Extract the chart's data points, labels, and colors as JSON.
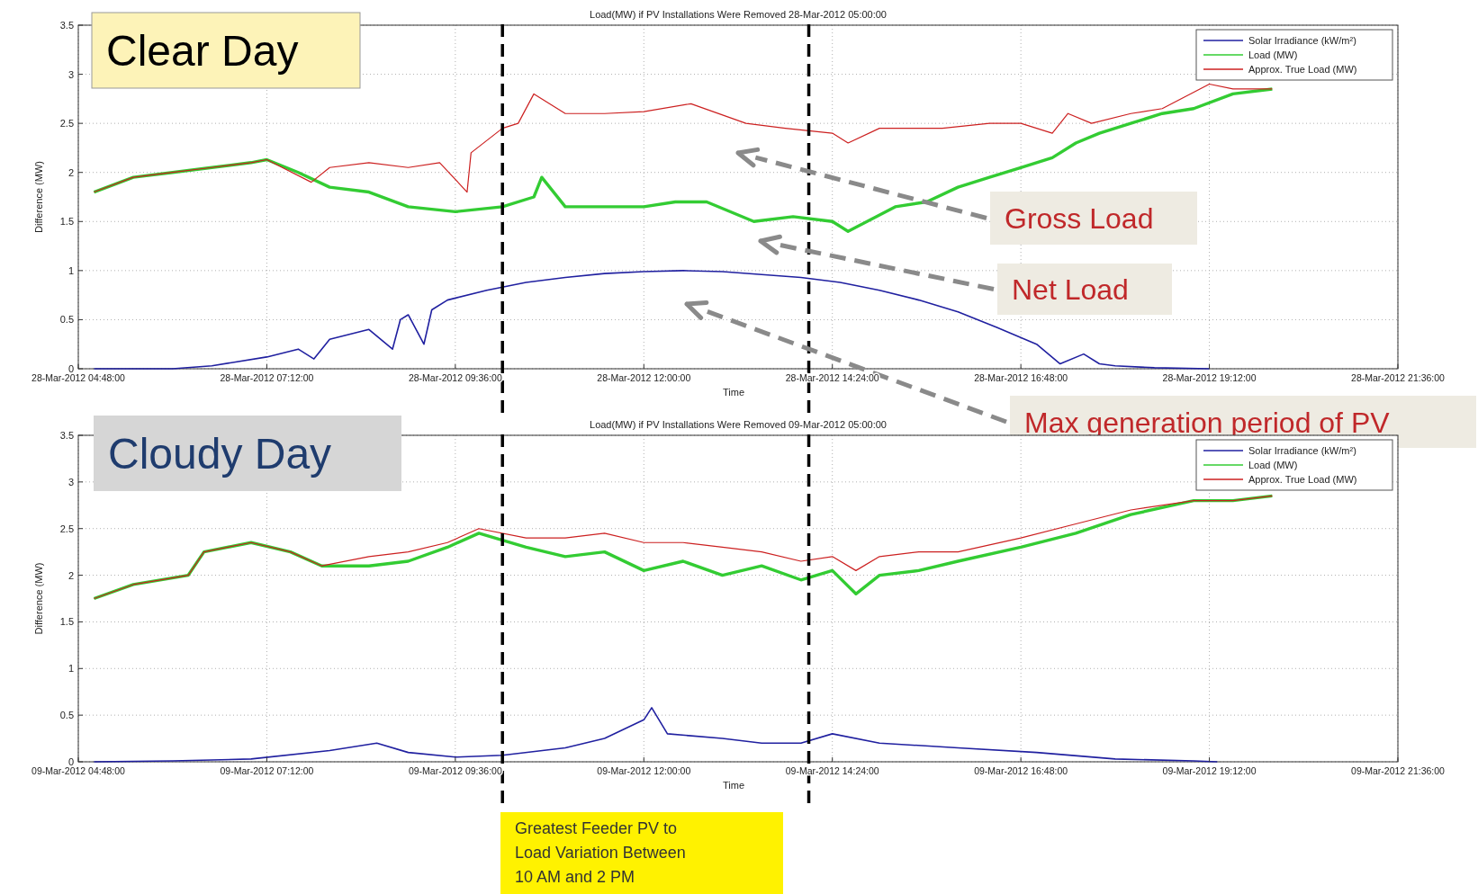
{
  "chart_data": [
    {
      "type": "line",
      "title": "Load(MW) if PV Installations Were Removed 28-Mar-2012 05:00:00",
      "xlabel": "Time",
      "ylabel": "Difference (MW)",
      "annotations": [
        "Clear Day",
        "Gross Load",
        "Net Load",
        "Max generation period of PV"
      ],
      "xlim": [
        "2012-03-28T04:48",
        "2012-03-28T21:36"
      ],
      "xticks": [
        {
          "value": "2012-03-28T04:48",
          "label": "28-Mar-2012 04:48:00"
        },
        {
          "value": "2012-03-28T07:12",
          "label": "28-Mar-2012 07:12:00"
        },
        {
          "value": "2012-03-28T09:36",
          "label": "28-Mar-2012 09:36:00"
        },
        {
          "value": "2012-03-28T12:00",
          "label": "28-Mar-2012 12:00:00"
        },
        {
          "value": "2012-03-28T14:24",
          "label": "28-Mar-2012 14:24:00"
        },
        {
          "value": "2012-03-28T16:48",
          "label": "28-Mar-2012 16:48:00"
        },
        {
          "value": "2012-03-28T19:12",
          "label": "28-Mar-2012 19:12:00"
        },
        {
          "value": "2012-03-28T21:36",
          "label": "28-Mar-2012 21:36:00"
        }
      ],
      "ylim": [
        0,
        3.5
      ],
      "yticks": [
        0,
        0.5,
        1,
        1.5,
        2,
        2.5,
        3,
        3.5
      ],
      "grid": true,
      "legend": "top right",
      "line_style": "solid",
      "ref_lines": [
        {
          "axis": "x",
          "value": "2012-03-28T10:12",
          "color": "#000000",
          "line_style": "dashed"
        },
        {
          "axis": "x",
          "value": "2012-03-28T14:06",
          "color": "#000000",
          "line_style": "dashed"
        }
      ],
      "series": [
        {
          "name": "Solar Irradiance (kW/m²)",
          "color": "#2020a0",
          "x": [
            "2012-03-28T05:00",
            "2012-03-28T06:00",
            "2012-03-28T06:30",
            "2012-03-28T07:12",
            "2012-03-28T07:36",
            "2012-03-28T07:48",
            "2012-03-28T08:00",
            "2012-03-28T08:30",
            "2012-03-28T08:48",
            "2012-03-28T08:54",
            "2012-03-28T09:00",
            "2012-03-28T09:12",
            "2012-03-28T09:18",
            "2012-03-28T09:30",
            "2012-03-28T10:00",
            "2012-03-28T10:30",
            "2012-03-28T11:00",
            "2012-03-28T11:30",
            "2012-03-28T12:00",
            "2012-03-28T12:30",
            "2012-03-28T13:00",
            "2012-03-28T13:30",
            "2012-03-28T14:00",
            "2012-03-28T14:30",
            "2012-03-28T15:00",
            "2012-03-28T15:30",
            "2012-03-28T16:00",
            "2012-03-28T16:30",
            "2012-03-28T17:00",
            "2012-03-28T17:18",
            "2012-03-28T17:36",
            "2012-03-28T17:48",
            "2012-03-28T18:00",
            "2012-03-28T18:30",
            "2012-03-28T19:12"
          ],
          "values": [
            0,
            0,
            0.03,
            0.12,
            0.2,
            0.1,
            0.3,
            0.4,
            0.2,
            0.5,
            0.55,
            0.25,
            0.6,
            0.7,
            0.8,
            0.88,
            0.93,
            0.97,
            0.99,
            1,
            0.99,
            0.96,
            0.93,
            0.88,
            0.8,
            0.7,
            0.58,
            0.42,
            0.25,
            0.05,
            0.15,
            0.05,
            0.03,
            0.01,
            0
          ]
        },
        {
          "name": "Load (MW)",
          "color": "#33cc33",
          "x": [
            "2012-03-28T05:00",
            "2012-03-28T05:30",
            "2012-03-28T06:00",
            "2012-03-28T06:30",
            "2012-03-28T07:00",
            "2012-03-28T07:12",
            "2012-03-28T07:36",
            "2012-03-28T08:00",
            "2012-03-28T08:30",
            "2012-03-28T09:00",
            "2012-03-28T09:36",
            "2012-03-28T10:12",
            "2012-03-28T10:36",
            "2012-03-28T10:42",
            "2012-03-28T11:00",
            "2012-03-28T11:30",
            "2012-03-28T12:00",
            "2012-03-28T12:24",
            "2012-03-28T12:48",
            "2012-03-28T13:24",
            "2012-03-28T13:54",
            "2012-03-28T14:24",
            "2012-03-28T14:36",
            "2012-03-28T15:12",
            "2012-03-28T15:36",
            "2012-03-28T16:00",
            "2012-03-28T16:24",
            "2012-03-28T16:48",
            "2012-03-28T17:12",
            "2012-03-28T17:30",
            "2012-03-28T17:48",
            "2012-03-28T18:12",
            "2012-03-28T18:36",
            "2012-03-28T19:00",
            "2012-03-28T19:30",
            "2012-03-28T20:00"
          ],
          "values": [
            1.8,
            1.95,
            2,
            2.05,
            2.1,
            2.13,
            2.0,
            1.85,
            1.8,
            1.65,
            1.6,
            1.65,
            1.75,
            1.95,
            1.65,
            1.65,
            1.65,
            1.7,
            1.7,
            1.5,
            1.55,
            1.5,
            1.4,
            1.65,
            1.7,
            1.85,
            1.95,
            2.05,
            2.15,
            2.3,
            2.4,
            2.5,
            2.6,
            2.65,
            2.8,
            2.85
          ]
        },
        {
          "name": "Approx. True Load (MW)",
          "color": "#cc2020",
          "x": [
            "2012-03-28T05:00",
            "2012-03-28T05:30",
            "2012-03-28T06:00",
            "2012-03-28T06:30",
            "2012-03-28T07:00",
            "2012-03-28T07:12",
            "2012-03-28T07:46",
            "2012-03-28T08:00",
            "2012-03-28T08:30",
            "2012-03-28T09:00",
            "2012-03-28T09:24",
            "2012-03-28T09:45",
            "2012-03-28T09:48",
            "2012-03-28T10:12",
            "2012-03-28T10:24",
            "2012-03-28T10:36",
            "2012-03-28T11:00",
            "2012-03-28T11:30",
            "2012-03-28T12:00",
            "2012-03-28T12:36",
            "2012-03-28T13:18",
            "2012-03-28T13:48",
            "2012-03-28T14:24",
            "2012-03-28T14:36",
            "2012-03-28T15:00",
            "2012-03-28T15:48",
            "2012-03-28T16:24",
            "2012-03-28T16:48",
            "2012-03-28T17:12",
            "2012-03-28T17:24",
            "2012-03-28T17:42",
            "2012-03-28T18:12",
            "2012-03-28T18:36",
            "2012-03-28T19:12",
            "2012-03-28T19:30",
            "2012-03-28T20:00"
          ],
          "values": [
            1.8,
            1.95,
            2,
            2.05,
            2.1,
            2.13,
            1.9,
            2.05,
            2.1,
            2.05,
            2.1,
            1.8,
            2.2,
            2.45,
            2.5,
            2.8,
            2.6,
            2.6,
            2.62,
            2.7,
            2.5,
            2.45,
            2.4,
            2.3,
            2.45,
            2.45,
            2.5,
            2.5,
            2.4,
            2.6,
            2.5,
            2.6,
            2.65,
            2.9,
            2.85,
            2.85
          ]
        }
      ]
    },
    {
      "type": "line",
      "title": "Load(MW) if PV Installations Were Removed 09-Mar-2012 05:00:00",
      "xlabel": "Time",
      "ylabel": "Difference (MW)",
      "annotations": [
        "Cloudy Day",
        "Greatest Feeder PV to Load Variation Between 10 AM and 2 PM"
      ],
      "xlim": [
        "2012-03-09T04:48",
        "2012-03-09T21:36"
      ],
      "xticks": [
        {
          "value": "2012-03-09T04:48",
          "label": "09-Mar-2012 04:48:00"
        },
        {
          "value": "2012-03-09T07:12",
          "label": "09-Mar-2012 07:12:00"
        },
        {
          "value": "2012-03-09T09:36",
          "label": "09-Mar-2012 09:36:00"
        },
        {
          "value": "2012-03-09T12:00",
          "label": "09-Mar-2012 12:00:00"
        },
        {
          "value": "2012-03-09T14:24",
          "label": "09-Mar-2012 14:24:00"
        },
        {
          "value": "2012-03-09T16:48",
          "label": "09-Mar-2012 16:48:00"
        },
        {
          "value": "2012-03-09T19:12",
          "label": "09-Mar-2012 19:12:00"
        },
        {
          "value": "2012-03-09T21:36",
          "label": "09-Mar-2012 21:36:00"
        }
      ],
      "ylim": [
        0,
        3.5
      ],
      "yticks": [
        0,
        0.5,
        1,
        1.5,
        2,
        2.5,
        3,
        3.5
      ],
      "grid": true,
      "legend": "top right",
      "line_style": "solid",
      "ref_lines": [
        {
          "axis": "x",
          "value": "2012-03-09T10:12",
          "color": "#000000",
          "line_style": "dashed"
        },
        {
          "axis": "x",
          "value": "2012-03-09T14:06",
          "color": "#000000",
          "line_style": "dashed"
        }
      ],
      "series": [
        {
          "name": "Solar Irradiance (kW/m²)",
          "color": "#2020a0",
          "x": [
            "2012-03-09T05:00",
            "2012-03-09T06:00",
            "2012-03-09T07:00",
            "2012-03-09T08:00",
            "2012-03-09T08:36",
            "2012-03-09T09:00",
            "2012-03-09T09:36",
            "2012-03-09T10:12",
            "2012-03-09T11:00",
            "2012-03-09T11:30",
            "2012-03-09T12:00",
            "2012-03-09T12:06",
            "2012-03-09T12:18",
            "2012-03-09T13:00",
            "2012-03-09T13:30",
            "2012-03-09T14:00",
            "2012-03-09T14:24",
            "2012-03-09T15:00",
            "2012-03-09T16:00",
            "2012-03-09T17:00",
            "2012-03-09T18:00",
            "2012-03-09T19:00",
            "2012-03-09T19:18"
          ],
          "values": [
            0,
            0.01,
            0.03,
            0.12,
            0.2,
            0.1,
            0.05,
            0.07,
            0.15,
            0.25,
            0.45,
            0.58,
            0.3,
            0.25,
            0.2,
            0.2,
            0.3,
            0.2,
            0.15,
            0.1,
            0.03,
            0.01,
            0
          ]
        },
        {
          "name": "Load (MW)",
          "color": "#33cc33",
          "x": [
            "2012-03-09T05:00",
            "2012-03-09T05:30",
            "2012-03-09T06:12",
            "2012-03-09T06:24",
            "2012-03-09T07:00",
            "2012-03-09T07:30",
            "2012-03-09T07:54",
            "2012-03-09T08:30",
            "2012-03-09T09:00",
            "2012-03-09T09:30",
            "2012-03-09T09:54",
            "2012-03-09T10:30",
            "2012-03-09T11:00",
            "2012-03-09T11:30",
            "2012-03-09T12:00",
            "2012-03-09T12:30",
            "2012-03-09T13:00",
            "2012-03-09T13:30",
            "2012-03-09T14:00",
            "2012-03-09T14:24",
            "2012-03-09T14:42",
            "2012-03-09T15:00",
            "2012-03-09T15:30",
            "2012-03-09T16:00",
            "2012-03-09T16:48",
            "2012-03-09T17:30",
            "2012-03-09T18:12",
            "2012-03-09T19:00",
            "2012-03-09T19:30",
            "2012-03-09T20:00"
          ],
          "values": [
            1.75,
            1.9,
            2,
            2.25,
            2.35,
            2.25,
            2.1,
            2.1,
            2.15,
            2.3,
            2.45,
            2.3,
            2.2,
            2.25,
            2.05,
            2.15,
            2,
            2.1,
            1.95,
            2.05,
            1.8,
            2,
            2.05,
            2.15,
            2.3,
            2.45,
            2.65,
            2.8,
            2.8,
            2.85
          ]
        },
        {
          "name": "Approx. True Load (MW)",
          "color": "#cc2020",
          "x": [
            "2012-03-09T05:00",
            "2012-03-09T05:30",
            "2012-03-09T06:12",
            "2012-03-09T06:24",
            "2012-03-09T07:00",
            "2012-03-09T07:30",
            "2012-03-09T07:54",
            "2012-03-09T08:30",
            "2012-03-09T09:00",
            "2012-03-09T09:30",
            "2012-03-09T09:54",
            "2012-03-09T10:30",
            "2012-03-09T11:00",
            "2012-03-09T11:30",
            "2012-03-09T12:00",
            "2012-03-09T12:30",
            "2012-03-09T13:00",
            "2012-03-09T13:30",
            "2012-03-09T14:00",
            "2012-03-09T14:24",
            "2012-03-09T14:42",
            "2012-03-09T15:00",
            "2012-03-09T15:30",
            "2012-03-09T16:00",
            "2012-03-09T16:48",
            "2012-03-09T17:30",
            "2012-03-09T18:12",
            "2012-03-09T19:00",
            "2012-03-09T19:30",
            "2012-03-09T20:00"
          ],
          "values": [
            1.75,
            1.9,
            2,
            2.25,
            2.35,
            2.25,
            2.1,
            2.2,
            2.25,
            2.35,
            2.5,
            2.4,
            2.4,
            2.45,
            2.35,
            2.35,
            2.3,
            2.25,
            2.15,
            2.2,
            2.05,
            2.2,
            2.25,
            2.25,
            2.4,
            2.55,
            2.7,
            2.8,
            2.8,
            2.85
          ]
        }
      ]
    }
  ]
}
